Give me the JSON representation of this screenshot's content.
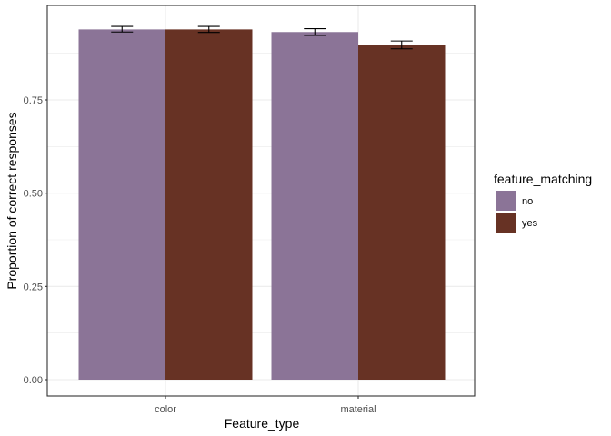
{
  "chart_data": {
    "type": "bar",
    "categories": [
      "color",
      "material"
    ],
    "xlabel": "Feature_type",
    "ylabel": "Proportion of correct responses",
    "ylim": [
      0,
      0.95
    ],
    "yticks": [
      "0.00",
      "0.25",
      "0.50",
      "0.75"
    ],
    "ytick_values": [
      0,
      0.25,
      0.5,
      0.75
    ],
    "grid": true,
    "legend": {
      "title": "feature_matching",
      "placement": "right"
    },
    "series": [
      {
        "name": "no",
        "color": "#8b7497",
        "values": [
          0.939,
          0.932
        ],
        "error_low": [
          0.932,
          0.923
        ],
        "error_high": [
          0.947,
          0.941
        ]
      },
      {
        "name": "yes",
        "color": "#673224",
        "values": [
          0.939,
          0.897
        ],
        "error_low": [
          0.931,
          0.887
        ],
        "error_high": [
          0.947,
          0.908
        ]
      }
    ]
  }
}
